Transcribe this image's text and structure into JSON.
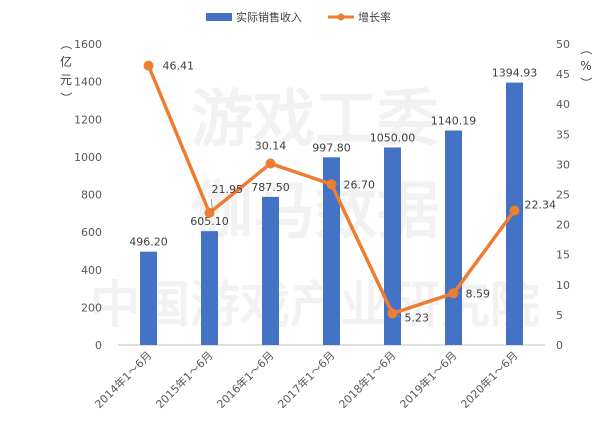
{
  "chart_data": {
    "type": "bar+line",
    "categories": [
      "2014年1～6月",
      "2015年1～6月",
      "2016年1～6月",
      "2017年1～6月",
      "2018年1～6月",
      "2019年1～6月",
      "2020年1～6月"
    ],
    "series": [
      {
        "name": "实际销售收入",
        "type": "bar",
        "axis": "left",
        "values": [
          496.2,
          605.1,
          787.5,
          997.8,
          1050.0,
          1140.19,
          1394.93
        ],
        "labels": [
          "496.20",
          "605.10",
          "787.50",
          "997.80",
          "1050.00",
          "1140.19",
          "1394.93"
        ],
        "color": "#4472c4"
      },
      {
        "name": "增长率",
        "type": "line",
        "axis": "right",
        "values": [
          46.41,
          21.95,
          30.14,
          26.7,
          5.23,
          8.59,
          22.34
        ],
        "labels": [
          "46.41",
          "21.95",
          "30.14",
          "26.70",
          "5.23",
          "8.59",
          "22.34"
        ],
        "color": "#ed7d31"
      }
    ],
    "y_left": {
      "unit_label": "（亿元）",
      "ylim": [
        0,
        1600
      ],
      "ticks": [
        "0",
        "200",
        "400",
        "600",
        "800",
        "1000",
        "1200",
        "1400",
        "1600"
      ]
    },
    "y_right": {
      "unit_label": "（%）",
      "ylim": [
        0,
        50
      ],
      "ticks": [
        "0",
        "5",
        "10",
        "15",
        "20",
        "25",
        "30",
        "35",
        "40",
        "45",
        "50"
      ]
    },
    "legend": {
      "position": "top-right",
      "entries": [
        "实际销售收入",
        "增长率"
      ]
    },
    "grid": false,
    "watermark": [
      "游戏工委",
      "伽马数据",
      "中国游戏产业研究院"
    ]
  }
}
